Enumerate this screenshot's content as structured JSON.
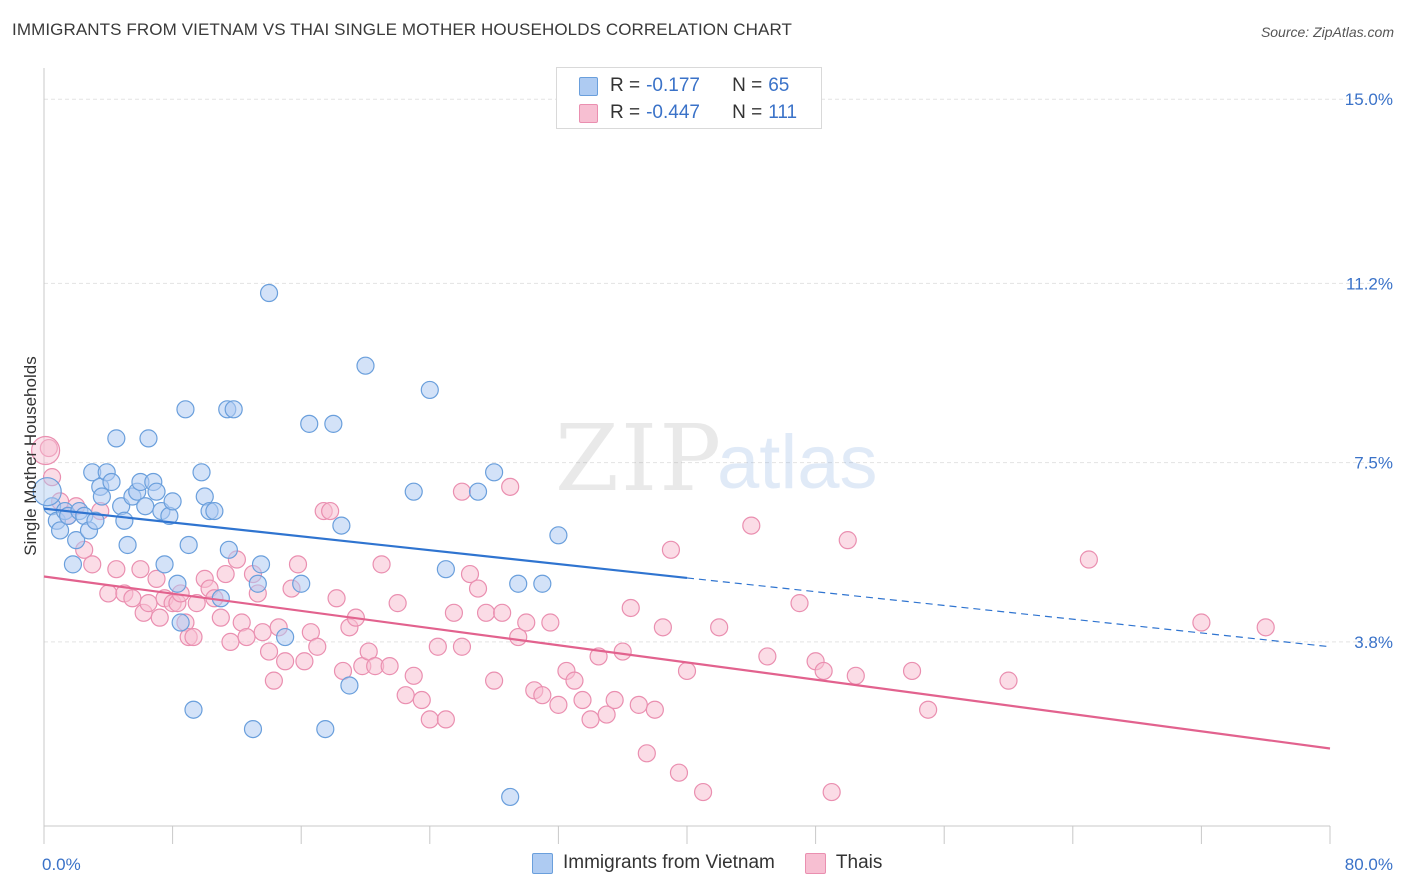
{
  "title": "IMMIGRANTS FROM VIETNAM VS THAI SINGLE MOTHER HOUSEHOLDS CORRELATION CHART",
  "source": "Source: ZipAtlas.com",
  "watermark": {
    "zip": "ZIP",
    "atlas": "atlas"
  },
  "legend_top": [
    {
      "r_label": "R = ",
      "r_value": "-0.177",
      "n_label": "N = ",
      "n_value": "65"
    },
    {
      "r_label": "R = ",
      "r_value": "-0.447",
      "n_label": "N = ",
      "n_value": "111"
    }
  ],
  "legend_bottom": [
    "Immigrants from Vietnam",
    "Thais"
  ],
  "colors": {
    "vietnam_fill": "#aecbf2",
    "vietnam_stroke": "#6a9fdc",
    "vietnam_line": "#2f74d0",
    "thai_fill": "#f7bfd2",
    "thai_stroke": "#ea8fb0",
    "thai_line": "#e2628e",
    "tick_label": "#3a72c8",
    "grid": "#e3e3e3"
  },
  "chart_data": {
    "type": "scatter",
    "title": "IMMIGRANTS FROM VIETNAM VS THAI SINGLE MOTHER HOUSEHOLDS CORRELATION CHART",
    "xlabel": "",
    "ylabel": "Single Mother Households",
    "xlim": [
      0,
      80
    ],
    "ylim": [
      0,
      15.5
    ],
    "x_tick_labels": [
      "0.0%",
      "80.0%"
    ],
    "y_ticks": [
      3.8,
      7.5,
      11.2,
      15.0
    ],
    "y_tick_labels": [
      "3.8%",
      "7.5%",
      "11.2%",
      "15.0%"
    ],
    "grid": true,
    "legend_position": "top-center",
    "series": [
      {
        "name": "Immigrants from Vietnam",
        "r": -0.177,
        "n": 65,
        "trend": {
          "x0": 0,
          "y0": 6.55,
          "x1": 40,
          "y1": 5.12,
          "dash_x1": 80,
          "dash_y1": 3.7
        },
        "points": [
          [
            0.5,
            6.6
          ],
          [
            0.8,
            6.3
          ],
          [
            1.0,
            6.1
          ],
          [
            1.3,
            6.5
          ],
          [
            1.5,
            6.4
          ],
          [
            1.8,
            5.4
          ],
          [
            2.0,
            5.9
          ],
          [
            2.2,
            6.5
          ],
          [
            2.5,
            6.4
          ],
          [
            2.8,
            6.1
          ],
          [
            3.0,
            7.3
          ],
          [
            3.2,
            6.3
          ],
          [
            3.5,
            7.0
          ],
          [
            3.6,
            6.8
          ],
          [
            3.9,
            7.3
          ],
          [
            4.2,
            7.1
          ],
          [
            4.5,
            8.0
          ],
          [
            4.8,
            6.6
          ],
          [
            5.0,
            6.3
          ],
          [
            5.2,
            5.8
          ],
          [
            5.5,
            6.8
          ],
          [
            5.8,
            6.9
          ],
          [
            6.0,
            7.1
          ],
          [
            6.3,
            6.6
          ],
          [
            6.5,
            8.0
          ],
          [
            6.8,
            7.1
          ],
          [
            7.0,
            6.9
          ],
          [
            7.3,
            6.5
          ],
          [
            7.5,
            5.4
          ],
          [
            7.8,
            6.4
          ],
          [
            8.0,
            6.7
          ],
          [
            8.3,
            5.0
          ],
          [
            8.5,
            4.2
          ],
          [
            8.8,
            8.6
          ],
          [
            9.0,
            5.8
          ],
          [
            9.3,
            2.4
          ],
          [
            9.8,
            7.3
          ],
          [
            10.0,
            6.8
          ],
          [
            10.3,
            6.5
          ],
          [
            10.6,
            6.5
          ],
          [
            11.0,
            4.7
          ],
          [
            11.4,
            8.6
          ],
          [
            11.5,
            5.7
          ],
          [
            11.8,
            8.6
          ],
          [
            13.0,
            2.0
          ],
          [
            13.3,
            5.0
          ],
          [
            13.5,
            5.4
          ],
          [
            14.0,
            11.0
          ],
          [
            15.0,
            3.9
          ],
          [
            16.0,
            5.0
          ],
          [
            16.5,
            8.3
          ],
          [
            17.5,
            2.0
          ],
          [
            18.0,
            8.3
          ],
          [
            18.5,
            6.2
          ],
          [
            19.0,
            2.9
          ],
          [
            20.0,
            9.5
          ],
          [
            23.0,
            6.9
          ],
          [
            24.0,
            9.0
          ],
          [
            25.0,
            5.3
          ],
          [
            27.0,
            6.9
          ],
          [
            28.0,
            7.3
          ],
          [
            29.0,
            0.6
          ],
          [
            29.5,
            5.0
          ],
          [
            31.0,
            5.0
          ],
          [
            32.0,
            6.0
          ]
        ]
      },
      {
        "name": "Thais",
        "r": -0.447,
        "n": 111,
        "trend": {
          "x0": 0,
          "y0": 5.15,
          "x1": 80,
          "y1": 1.6
        },
        "points": [
          [
            0.3,
            7.8
          ],
          [
            0.5,
            7.2
          ],
          [
            1.0,
            6.7
          ],
          [
            1.5,
            6.4
          ],
          [
            2.0,
            6.6
          ],
          [
            2.5,
            5.7
          ],
          [
            3.0,
            5.4
          ],
          [
            3.5,
            6.5
          ],
          [
            4.0,
            4.8
          ],
          [
            4.5,
            5.3
          ],
          [
            5.0,
            4.8
          ],
          [
            5.5,
            4.7
          ],
          [
            6.0,
            5.3
          ],
          [
            6.2,
            4.4
          ],
          [
            6.5,
            4.6
          ],
          [
            7.0,
            5.1
          ],
          [
            7.2,
            4.3
          ],
          [
            7.5,
            4.7
          ],
          [
            8.0,
            4.6
          ],
          [
            8.3,
            4.6
          ],
          [
            8.5,
            4.8
          ],
          [
            8.8,
            4.2
          ],
          [
            9.0,
            3.9
          ],
          [
            9.3,
            3.9
          ],
          [
            9.5,
            4.6
          ],
          [
            10.0,
            5.1
          ],
          [
            10.3,
            4.9
          ],
          [
            10.6,
            4.7
          ],
          [
            11.0,
            4.3
          ],
          [
            11.3,
            5.2
          ],
          [
            11.6,
            3.8
          ],
          [
            12.0,
            5.5
          ],
          [
            12.3,
            4.2
          ],
          [
            12.6,
            3.9
          ],
          [
            13.0,
            5.2
          ],
          [
            13.3,
            4.8
          ],
          [
            13.6,
            4.0
          ],
          [
            14.0,
            3.6
          ],
          [
            14.3,
            3.0
          ],
          [
            14.6,
            4.1
          ],
          [
            15.0,
            3.4
          ],
          [
            15.4,
            4.9
          ],
          [
            15.8,
            5.4
          ],
          [
            16.2,
            3.4
          ],
          [
            16.6,
            4.0
          ],
          [
            17.0,
            3.7
          ],
          [
            17.4,
            6.5
          ],
          [
            17.8,
            6.5
          ],
          [
            18.2,
            4.7
          ],
          [
            18.6,
            3.2
          ],
          [
            19.0,
            4.1
          ],
          [
            19.4,
            4.3
          ],
          [
            19.8,
            3.3
          ],
          [
            20.2,
            3.6
          ],
          [
            20.6,
            3.3
          ],
          [
            21.0,
            5.4
          ],
          [
            21.5,
            3.3
          ],
          [
            22.0,
            4.6
          ],
          [
            22.5,
            2.7
          ],
          [
            23.0,
            3.1
          ],
          [
            23.5,
            2.6
          ],
          [
            24.0,
            2.2
          ],
          [
            24.5,
            3.7
          ],
          [
            25.0,
            2.2
          ],
          [
            25.5,
            4.4
          ],
          [
            26.0,
            3.7
          ],
          [
            26.5,
            5.2
          ],
          [
            27.0,
            4.9
          ],
          [
            27.5,
            4.4
          ],
          [
            28.0,
            3.0
          ],
          [
            28.5,
            4.4
          ],
          [
            29.0,
            7.0
          ],
          [
            29.5,
            3.9
          ],
          [
            30.0,
            4.2
          ],
          [
            30.5,
            2.8
          ],
          [
            31.0,
            2.7
          ],
          [
            31.5,
            4.2
          ],
          [
            32.0,
            2.5
          ],
          [
            32.5,
            3.2
          ],
          [
            33.0,
            3.0
          ],
          [
            33.5,
            2.6
          ],
          [
            34.0,
            2.2
          ],
          [
            34.5,
            3.5
          ],
          [
            35.0,
            2.3
          ],
          [
            35.5,
            2.6
          ],
          [
            36.0,
            3.6
          ],
          [
            36.5,
            4.5
          ],
          [
            37.0,
            2.5
          ],
          [
            37.5,
            1.5
          ],
          [
            38.0,
            2.4
          ],
          [
            38.5,
            4.1
          ],
          [
            39.0,
            5.7
          ],
          [
            39.5,
            1.1
          ],
          [
            40.0,
            3.2
          ],
          [
            41.0,
            0.7
          ],
          [
            42.0,
            4.1
          ],
          [
            44.0,
            6.2
          ],
          [
            45.0,
            3.5
          ],
          [
            47.0,
            4.6
          ],
          [
            48.0,
            3.4
          ],
          [
            48.5,
            3.2
          ],
          [
            49.0,
            0.7
          ],
          [
            50.0,
            5.9
          ],
          [
            50.5,
            3.1
          ],
          [
            54.0,
            3.2
          ],
          [
            55.0,
            2.4
          ],
          [
            60.0,
            3.0
          ],
          [
            65.0,
            5.5
          ],
          [
            72.0,
            4.2
          ],
          [
            76.0,
            4.1
          ],
          [
            26.0,
            6.9
          ]
        ]
      }
    ]
  }
}
